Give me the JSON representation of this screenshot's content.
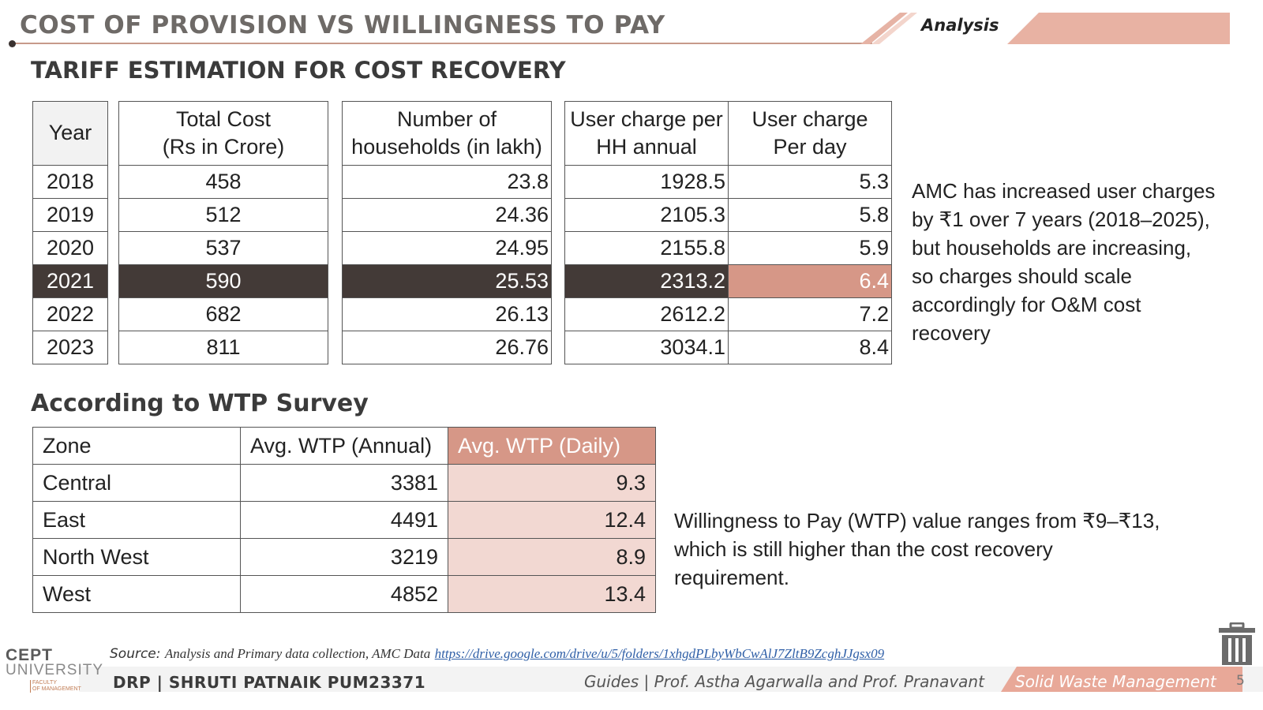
{
  "header": {
    "title": "COST OF PROVISION VS WILLINGNESS TO PAY",
    "tag": "Analysis"
  },
  "section1": {
    "title": "TARIFF ESTIMATION FOR COST RECOVERY"
  },
  "tariff_table": {
    "headers": {
      "year": "Year",
      "total_cost_l1": "Total Cost",
      "total_cost_l2": "(Rs in Crore)",
      "households_l1": "Number of",
      "households_l2": "households  (in lakh)",
      "charge_annual_l1": "User charge per",
      "charge_annual_l2": "HH annual",
      "charge_day_l1": "User charge",
      "charge_day_l2": "Per day"
    },
    "rows": [
      {
        "year": "2018",
        "cost": "458",
        "households": "23.8",
        "annual": "1928.5",
        "daily": "5.3"
      },
      {
        "year": "2019",
        "cost": "512",
        "households": "24.36",
        "annual": "2105.3",
        "daily": "5.8"
      },
      {
        "year": "2020",
        "cost": "537",
        "households": "24.95",
        "annual": "2155.8",
        "daily": "5.9"
      },
      {
        "year": "2021",
        "cost": "590",
        "households": "25.53",
        "annual": "2313.2",
        "daily": "6.4"
      },
      {
        "year": "2022",
        "cost": "682",
        "households": "26.13",
        "annual": "2612.2",
        "daily": "7.2"
      },
      {
        "year": "2023",
        "cost": "811",
        "households": "26.76",
        "annual": "3034.1",
        "daily": "8.4"
      }
    ]
  },
  "note1": {
    "lines": [
      "AMC has increased user charges",
      "by ₹1 over 7 years (2018–2025),",
      "but households are increasing,",
      "so charges should scale",
      "accordingly for O&M cost",
      "recovery"
    ]
  },
  "section2": {
    "title": "According to WTP Survey"
  },
  "wtp_table": {
    "headers": {
      "zone": "Zone",
      "annual": "Avg. WTP (Annual)",
      "daily": "Avg. WTP (Daily)"
    },
    "rows": [
      {
        "zone": "Central",
        "annual": "3381",
        "daily": "9.3"
      },
      {
        "zone": "East",
        "annual": "4491",
        "daily": "12.4"
      },
      {
        "zone": "North West",
        "annual": "3219",
        "daily": "8.9"
      },
      {
        "zone": "West",
        "annual": "4852",
        "daily": "13.4"
      }
    ]
  },
  "note2": {
    "lines": [
      "Willingness to Pay (WTP) value ranges from ₹9–₹13,",
      "which is still higher than the cost recovery",
      "requirement."
    ]
  },
  "source": {
    "label": "Source:",
    "text": "Analysis and Primary data collection, AMC Data",
    "link": "https://drive.google.com/drive/u/5/folders/1xhgdPLbyWbCwAlJ7ZltB9ZcghJJgsx09"
  },
  "footer": {
    "author": "DRP | SHRUTI PATNAIK PUM23371",
    "guides": "Guides | Prof. Astha Agarwalla and Prof. Pranavant",
    "topic": "Solid Waste Management",
    "page": "5"
  },
  "logo": {
    "line1": "CEPT",
    "line2": "UNIVERSITY",
    "sub1": "FACULTY",
    "sub2": "OF MANAGEMENT"
  },
  "colors": {
    "accent": "#d69787",
    "dark_highlight": "#433a37",
    "wtp_fill": "#f2d8d2",
    "link": "#2f5fa7"
  },
  "icons": {
    "trash": "trash-icon"
  }
}
